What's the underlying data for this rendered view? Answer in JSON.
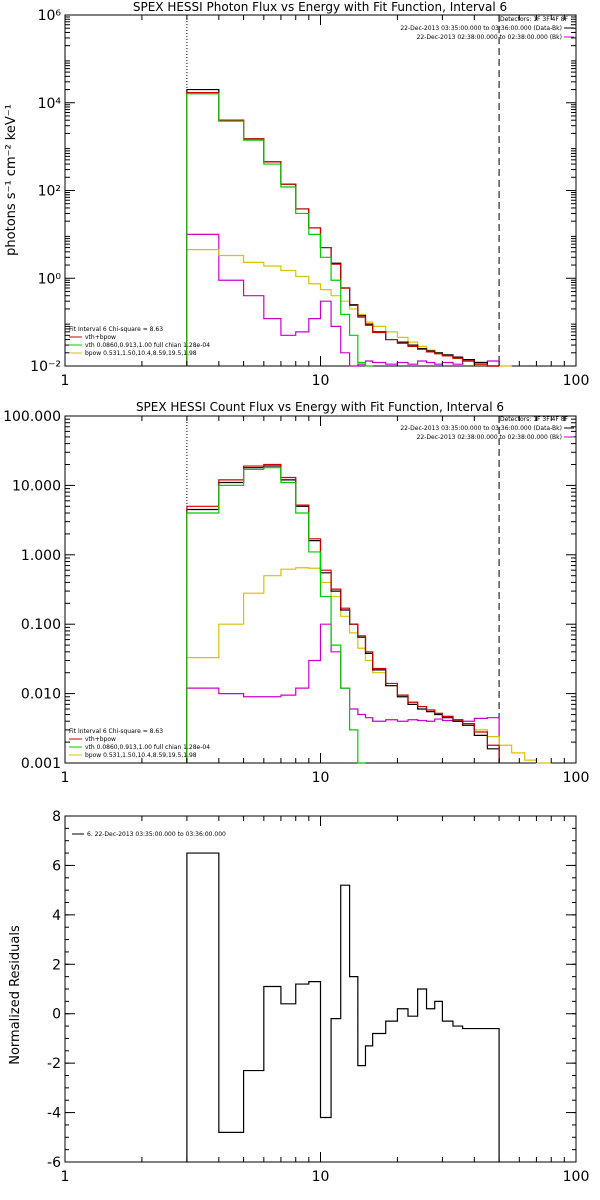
{
  "colors": {
    "total": "#000000",
    "fit": "#cc0000",
    "thermal": "#00cc00",
    "power": "#d9c400",
    "background": "#cc00cc",
    "residual": "#000000"
  },
  "chart_data": [
    {
      "type": "line",
      "title": "SPEX HESSI Photon Flux vs Energy with Fit Function, Interval 6",
      "xlabel": "",
      "ylabel": "photons s⁻¹ cm⁻² keV⁻¹",
      "xscale": "log",
      "yscale": "log",
      "xlim": [
        1,
        100
      ],
      "ylim": [
        0.01,
        1000000
      ],
      "xticks": [
        {
          "value": 1,
          "label": "1"
        },
        {
          "value": 10,
          "label": "10"
        },
        {
          "value": 100,
          "label": "100"
        }
      ],
      "yticks": [
        {
          "value": 0.01,
          "label": "10⁻²"
        },
        {
          "value": 1,
          "label": "10⁰"
        },
        {
          "value": 100,
          "label": "10²"
        },
        {
          "value": 10000,
          "label": "10⁴"
        },
        {
          "value": 1000000,
          "label": "10⁶"
        }
      ],
      "fit_lower_energy": 3,
      "fit_upper_energy": 50,
      "detectors_label": "Detectors: 1F 3F 4F 8F",
      "legend_right": [
        {
          "label": "22-Dec-2013 03:35:00.000 to 03:36:00.000 (Data-Bk)",
          "color_key": "total"
        },
        {
          "label": "22-Dec-2013 02:38:00.000 to 02:38:00.000 (Bk)",
          "color_key": "background"
        }
      ],
      "legend_left_header": "Fit Interval 6    Chi-square = 8.63",
      "legend_left": [
        {
          "label": "vth+bpow",
          "color_key": "fit"
        },
        {
          "label": "vth 0.0860,0.913,1.00  full chian 1.28e-04",
          "color_key": "thermal"
        },
        {
          "label": "bpow 0.531,1.50,10.4,8.59,19.5,1.98",
          "color_key": "power"
        }
      ],
      "edges": [
        3,
        4,
        5,
        6,
        7,
        8,
        9,
        10,
        11,
        12,
        13,
        14,
        15,
        16,
        18,
        20,
        22,
        24,
        26,
        28,
        30,
        33,
        36,
        40,
        45,
        50,
        56,
        63
      ],
      "series": [
        {
          "name": "Data-Bk",
          "color_key": "total",
          "values": [
            20000,
            4000,
            1500,
            450,
            140,
            38,
            14,
            5,
            2.2,
            0.6,
            0.25,
            0.14,
            0.09,
            0.06,
            0.04,
            0.035,
            0.03,
            0.025,
            0.022,
            0.02,
            0.018,
            0.016,
            0.014,
            0.012,
            0.01,
            null,
            null
          ]
        },
        {
          "name": "vth+bpow",
          "color_key": "fit",
          "values": [
            17000,
            4000,
            1500,
            450,
            140,
            38,
            14,
            5,
            2.1,
            0.6,
            0.24,
            0.13,
            0.085,
            0.058,
            0.04,
            0.033,
            0.028,
            0.024,
            0.021,
            0.019,
            0.017,
            0.015,
            0.013,
            0.011,
            0.01,
            null,
            null
          ]
        },
        {
          "name": "vth",
          "color_key": "thermal",
          "values": [
            16000,
            3800,
            1400,
            400,
            120,
            30,
            10,
            3,
            0.9,
            0.15,
            0.05,
            0.012,
            0.003,
            null,
            null,
            null,
            null,
            null,
            null,
            null,
            null,
            null,
            null,
            null,
            null,
            null,
            null
          ]
        },
        {
          "name": "bpow",
          "color_key": "power",
          "values": [
            4.5,
            3.3,
            2.3,
            1.9,
            1.5,
            1.1,
            0.75,
            0.55,
            0.4,
            0.3,
            0.2,
            0.15,
            0.1,
            0.08,
            0.06,
            0.045,
            0.035,
            0.028,
            0.023,
            0.02,
            0.017,
            0.015,
            0.013,
            0.011,
            0.01,
            0.01,
            null
          ]
        },
        {
          "name": "Bk",
          "color_key": "background",
          "values": [
            10,
            0.9,
            0.4,
            0.12,
            0.05,
            0.06,
            0.12,
            0.3,
            0.08,
            0.02,
            0.006,
            0.011,
            0.013,
            0.012,
            0.011,
            0.012,
            0.011,
            0.013,
            0.012,
            0.011,
            0.012,
            0.011,
            0.013,
            0.012,
            0.013,
            null,
            null
          ]
        }
      ]
    },
    {
      "type": "line",
      "title": "SPEX HESSI Count Flux vs Energy with Fit Function, Interval 6",
      "xlabel": "",
      "ylabel": "",
      "xscale": "log",
      "yscale": "log",
      "xlim": [
        1,
        100
      ],
      "ylim": [
        0.001,
        100
      ],
      "xticks": [
        {
          "value": 1,
          "label": "1"
        },
        {
          "value": 10,
          "label": "10"
        },
        {
          "value": 100,
          "label": "100"
        }
      ],
      "yticks": [
        {
          "value": 0.001,
          "label": "0.001"
        },
        {
          "value": 0.01,
          "label": "0.010"
        },
        {
          "value": 0.1,
          "label": "0.100"
        },
        {
          "value": 1,
          "label": "1.000"
        },
        {
          "value": 10,
          "label": "10.000"
        },
        {
          "value": 100,
          "label": "100.000"
        }
      ],
      "fit_lower_energy": 3,
      "fit_upper_energy": 50,
      "detectors_label": "Detectors: 1F 3F 4F 8F",
      "legend_right": [
        {
          "label": "22-Dec-2013 03:35:00.000 to 03:36:00.000 (Data-Bk)",
          "color_key": "total"
        },
        {
          "label": "22-Dec-2013 02:38:00.000 to 02:38:00.000 (Bk)",
          "color_key": "background"
        }
      ],
      "legend_left_header": "Fit Interval 6    Chi-square = 8.63",
      "legend_left": [
        {
          "label": "vth+bpow",
          "color_key": "fit"
        },
        {
          "label": "vth 0.0860,0.913,1.00  full chian 1.28e-04",
          "color_key": "thermal"
        },
        {
          "label": "bpow 0.531,1.50,10.4,8.59,19.5,1.98",
          "color_key": "power"
        }
      ],
      "edges": [
        3,
        4,
        5,
        6,
        7,
        8,
        9,
        10,
        11,
        12,
        13,
        14,
        15,
        16,
        18,
        20,
        22,
        24,
        26,
        28,
        30,
        33,
        36,
        40,
        45,
        50,
        56,
        63,
        70,
        80,
        90
      ],
      "series": [
        {
          "name": "Data-Bk",
          "color_key": "total",
          "values": [
            4.5,
            11,
            18,
            19,
            12,
            5,
            1.6,
            0.55,
            0.3,
            0.16,
            0.1,
            0.065,
            0.038,
            0.022,
            0.013,
            0.009,
            0.007,
            0.006,
            0.0055,
            0.005,
            0.0045,
            0.004,
            0.0035,
            0.0025,
            0.0016,
            null,
            null,
            null,
            null,
            null
          ]
        },
        {
          "name": "vth+bpow",
          "color_key": "fit",
          "values": [
            5,
            12,
            19,
            20,
            13,
            5.2,
            1.7,
            0.6,
            0.32,
            0.17,
            0.1,
            0.068,
            0.04,
            0.023,
            0.014,
            0.0095,
            0.0075,
            0.0065,
            0.0058,
            0.0052,
            0.0047,
            0.0042,
            0.0037,
            0.0028,
            0.0018,
            null,
            null,
            null,
            null,
            null
          ]
        },
        {
          "name": "vth",
          "color_key": "thermal",
          "values": [
            4,
            10,
            17,
            18,
            11,
            4,
            1.1,
            0.25,
            0.05,
            0.012,
            0.003,
            0.001,
            null,
            null,
            null,
            null,
            null,
            null,
            null,
            null,
            null,
            null,
            null,
            null,
            null,
            null,
            null,
            null,
            null,
            null
          ]
        },
        {
          "name": "bpow",
          "color_key": "power",
          "values": [
            0.033,
            0.1,
            0.28,
            0.5,
            0.62,
            0.65,
            0.64,
            0.4,
            0.25,
            0.13,
            0.075,
            0.045,
            0.03,
            0.02,
            0.013,
            0.0095,
            0.0075,
            0.0065,
            0.0058,
            0.0052,
            0.0047,
            0.0042,
            0.0037,
            0.003,
            0.0024,
            0.0018,
            0.0014,
            0.0011,
            0.001,
            null
          ]
        },
        {
          "name": "Bk",
          "color_key": "background",
          "values": [
            0.012,
            0.01,
            0.009,
            0.009,
            0.0095,
            0.012,
            0.03,
            0.1,
            0.04,
            0.012,
            0.006,
            0.005,
            0.0045,
            0.004,
            0.0042,
            0.004,
            0.0042,
            0.0041,
            0.004,
            0.0043,
            0.0041,
            0.0042,
            0.004,
            0.0044,
            0.0045,
            null,
            null,
            null,
            null,
            null
          ]
        }
      ]
    },
    {
      "type": "line",
      "title": "",
      "xlabel": "",
      "ylabel": "Normalized Residuals",
      "xscale": "log",
      "yscale": "linear",
      "xlim": [
        1,
        100
      ],
      "ylim": [
        -6,
        8
      ],
      "xticks": [
        {
          "value": 1,
          "label": "1"
        },
        {
          "value": 10,
          "label": "10"
        },
        {
          "value": 100,
          "label": "100"
        }
      ],
      "yticks": [
        {
          "value": -6,
          "label": "-6"
        },
        {
          "value": -4,
          "label": "-4"
        },
        {
          "value": -2,
          "label": "-2"
        },
        {
          "value": 0,
          "label": "0"
        },
        {
          "value": 2,
          "label": "2"
        },
        {
          "value": 4,
          "label": "4"
        },
        {
          "value": 6,
          "label": "6"
        },
        {
          "value": 8,
          "label": "8"
        }
      ],
      "legend_left": [
        {
          "label": "6. 22-Dec-2013 03:35:00.000 to 03:36:00.000",
          "color_key": "residual"
        }
      ],
      "edges": [
        3,
        4,
        5,
        6,
        7,
        8,
        9,
        10,
        11,
        12,
        13,
        14,
        15,
        16,
        18,
        20,
        22,
        24,
        26,
        28,
        30,
        33,
        36,
        40,
        45,
        50
      ],
      "series": [
        {
          "name": "",
          "color_key": "residual",
          "values": [
            6.5,
            -4.8,
            -2.3,
            1.1,
            0.4,
            1.2,
            1.3,
            -4.2,
            -0.2,
            5.2,
            1.5,
            -2.1,
            -1.3,
            -0.8,
            -0.3,
            0.2,
            -0.1,
            1.0,
            0.2,
            0.5,
            -0.3,
            -0.5,
            -0.6,
            -0.6,
            -0.6
          ]
        }
      ]
    }
  ]
}
